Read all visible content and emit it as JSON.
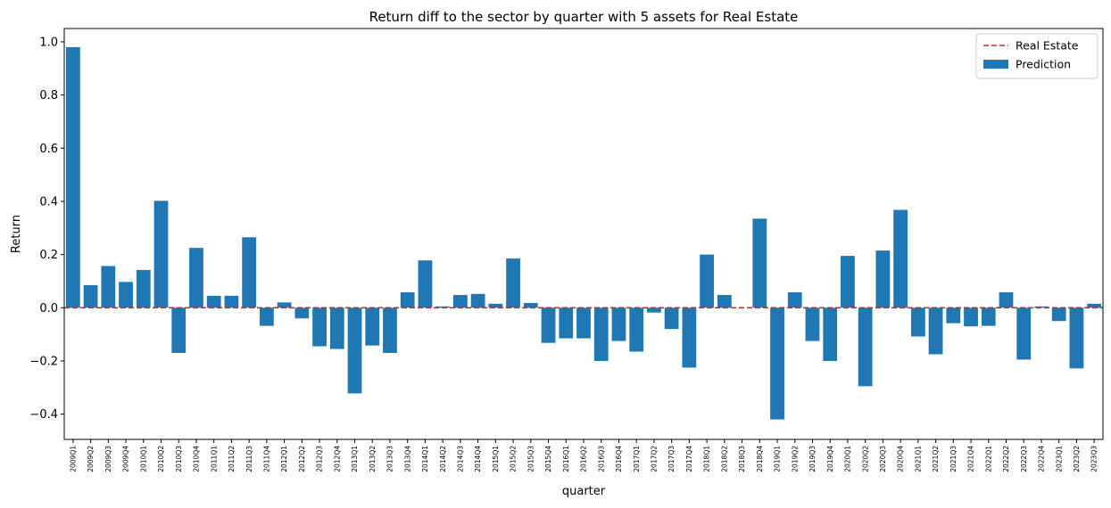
{
  "chart_data": {
    "type": "bar",
    "title": "Return diff to the sector by quarter with 5 assets for Real Estate",
    "xlabel": "quarter",
    "ylabel": "Return",
    "ylim": [
      -0.495,
      1.05
    ],
    "yticks": [
      -0.4,
      -0.2,
      0.0,
      0.2,
      0.4,
      0.6,
      0.8,
      1.0
    ],
    "ytick_labels": [
      "−0.4",
      "−0.2",
      "0.0",
      "0.2",
      "0.4",
      "0.6",
      "0.8",
      "1.0"
    ],
    "grid": false,
    "legend_position": "top-right",
    "categories": [
      "2009Q1",
      "2009Q2",
      "2009Q3",
      "2009Q4",
      "2010Q1",
      "2010Q2",
      "2010Q3",
      "2010Q4",
      "2011Q1",
      "2011Q2",
      "2011Q3",
      "2011Q4",
      "2012Q1",
      "2012Q2",
      "2012Q3",
      "2012Q4",
      "2013Q1",
      "2013Q2",
      "2013Q3",
      "2013Q4",
      "2014Q1",
      "2014Q2",
      "2014Q3",
      "2014Q4",
      "2015Q1",
      "2015Q2",
      "2015Q3",
      "2015Q4",
      "2016Q1",
      "2016Q2",
      "2016Q3",
      "2016Q4",
      "2017Q1",
      "2017Q2",
      "2017Q3",
      "2017Q4",
      "2018Q1",
      "2018Q2",
      "2018Q3",
      "2018Q4",
      "2019Q1",
      "2019Q2",
      "2019Q3",
      "2019Q4",
      "2020Q1",
      "2020Q2",
      "2020Q3",
      "2020Q4",
      "2021Q1",
      "2021Q2",
      "2021Q3",
      "2021Q4",
      "2022Q1",
      "2022Q2",
      "2022Q3",
      "2022Q4",
      "2023Q1",
      "2023Q2",
      "2023Q3"
    ],
    "series": [
      {
        "name": "Prediction",
        "color": "#1f77b4",
        "values": [
          0.98,
          0.085,
          0.157,
          0.097,
          0.142,
          0.402,
          -0.17,
          0.225,
          0.045,
          0.045,
          0.265,
          -0.068,
          0.02,
          -0.04,
          -0.145,
          -0.155,
          -0.322,
          -0.142,
          -0.17,
          0.058,
          0.178,
          0.005,
          0.048,
          0.052,
          0.015,
          0.185,
          0.018,
          -0.132,
          -0.115,
          -0.115,
          -0.2,
          -0.125,
          -0.165,
          -0.018,
          -0.08,
          -0.225,
          0.2,
          0.048,
          0.0,
          0.335,
          -0.42,
          0.058,
          -0.125,
          -0.2,
          0.195,
          -0.295,
          0.215,
          0.368,
          -0.108,
          -0.175,
          -0.058,
          -0.07,
          -0.068,
          0.058,
          -0.195,
          0.005,
          -0.05,
          -0.228,
          0.015
        ]
      }
    ],
    "reference_line": {
      "name": "Real Estate",
      "y": 0.0,
      "color": "#d62728",
      "style": "dashed"
    }
  }
}
